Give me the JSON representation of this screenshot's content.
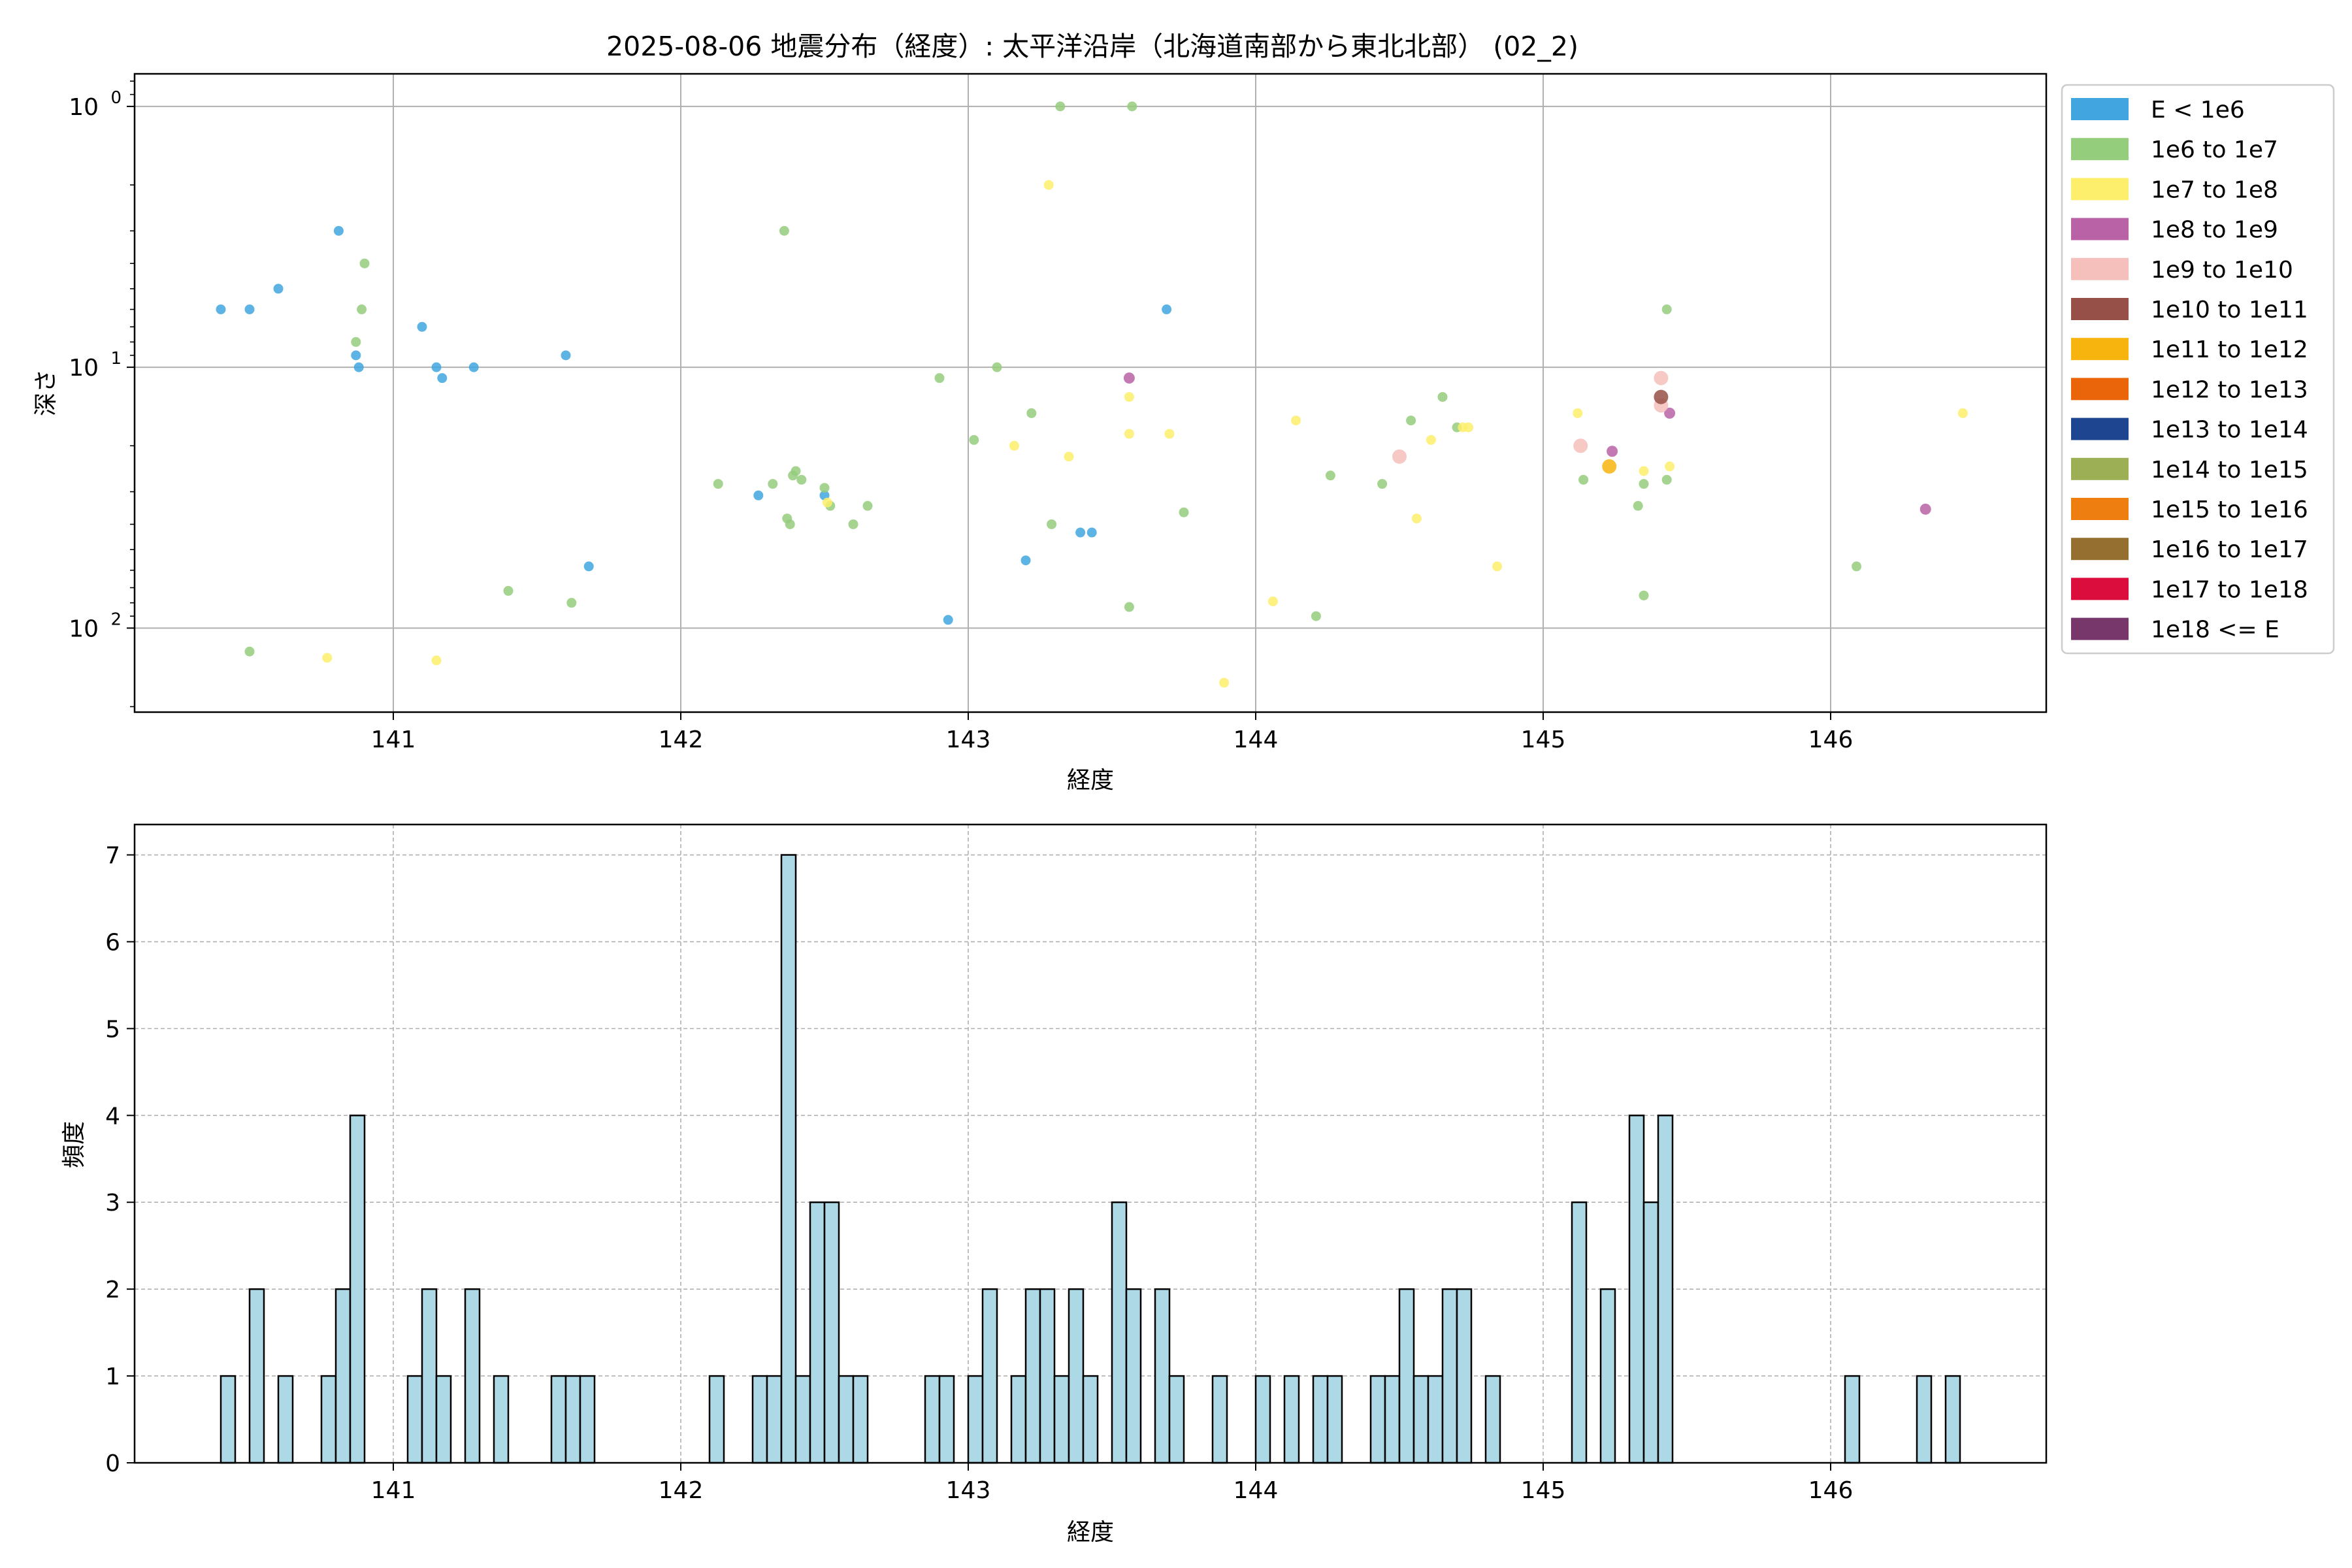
{
  "title": "2025-08-06 地震分布（経度）: 太平洋沿岸（北海道南部から東北北部） (02_2)",
  "chart_data": [
    {
      "type": "scatter",
      "xlabel": "経度",
      "ylabel": "深さ",
      "xlim": [
        140.1,
        146.75
      ],
      "ylim": [
        210,
        0.75
      ],
      "y_scale": "log",
      "y_inverted": true,
      "x_ticks": [
        141,
        142,
        143,
        144,
        145,
        146
      ],
      "y_ticks": [
        {
          "value": 1,
          "base": "10",
          "exp": "0"
        },
        {
          "value": 10,
          "base": "10",
          "exp": "1"
        },
        {
          "value": 100,
          "base": "10",
          "exp": "2"
        }
      ],
      "grid": true,
      "legend_position": "outside-right",
      "legend": [
        {
          "label": "E < 1e6",
          "color": "#41a6df"
        },
        {
          "label": "1e6 to 1e7",
          "color": "#94cd7c"
        },
        {
          "label": "1e7 to 1e8",
          "color": "#fdee6c"
        },
        {
          "label": "1e8 to 1e9",
          "color": "#b963a6"
        },
        {
          "label": "1e9 to 1e10",
          "color": "#f5bfbb"
        },
        {
          "label": "1e10 to 1e11",
          "color": "#975048"
        },
        {
          "label": "1e11 to 1e12",
          "color": "#f8b40e"
        },
        {
          "label": "1e12 to 1e13",
          "color": "#ea6409"
        },
        {
          "label": "1e13 to 1e14",
          "color": "#1e4690"
        },
        {
          "label": "1e14 to 1e15",
          "color": "#9daf55"
        },
        {
          "label": "1e15 to 1e16",
          "color": "#ef7e11"
        },
        {
          "label": "1e16 to 1e17",
          "color": "#946f2f"
        },
        {
          "label": "1e17 to 1e18",
          "color": "#db0d3c"
        },
        {
          "label": "1e18 <= E",
          "color": "#78376b"
        }
      ],
      "points": [
        [
          140.4,
          6,
          0
        ],
        [
          140.5,
          6,
          0
        ],
        [
          140.6,
          5,
          0
        ],
        [
          140.81,
          3,
          0
        ],
        [
          140.87,
          9,
          0
        ],
        [
          140.88,
          10,
          0
        ],
        [
          141.1,
          7,
          0
        ],
        [
          141.15,
          10,
          0
        ],
        [
          141.17,
          11,
          0
        ],
        [
          141.28,
          10,
          0
        ],
        [
          141.6,
          9,
          0
        ],
        [
          141.68,
          58,
          0
        ],
        [
          142.27,
          31,
          0
        ],
        [
          142.5,
          31,
          0
        ],
        [
          143.2,
          55,
          0
        ],
        [
          143.39,
          43,
          0
        ],
        [
          143.43,
          43,
          0
        ],
        [
          143.69,
          6,
          0
        ],
        [
          142.93,
          93,
          0
        ],
        [
          140.87,
          8,
          1
        ],
        [
          140.89,
          6,
          1
        ],
        [
          140.9,
          4,
          1
        ],
        [
          140.5,
          123,
          1
        ],
        [
          141.4,
          72,
          1
        ],
        [
          141.62,
          80,
          1
        ],
        [
          142.13,
          28,
          1
        ],
        [
          142.32,
          28,
          1
        ],
        [
          142.37,
          38,
          1
        ],
        [
          142.38,
          40,
          1
        ],
        [
          142.39,
          26,
          1
        ],
        [
          142.4,
          25,
          1
        ],
        [
          142.42,
          27,
          1
        ],
        [
          142.5,
          29,
          1
        ],
        [
          142.52,
          34,
          1
        ],
        [
          142.6,
          40,
          1
        ],
        [
          142.65,
          34,
          1
        ],
        [
          142.36,
          3,
          1
        ],
        [
          142.9,
          11,
          1
        ],
        [
          143.02,
          19,
          1
        ],
        [
          143.1,
          10,
          1
        ],
        [
          143.22,
          15,
          1
        ],
        [
          143.29,
          40,
          1
        ],
        [
          143.32,
          1,
          1
        ],
        [
          143.57,
          1,
          1
        ],
        [
          143.56,
          83,
          1
        ],
        [
          143.75,
          36,
          1
        ],
        [
          144.21,
          90,
          1
        ],
        [
          144.26,
          26,
          1
        ],
        [
          144.44,
          28,
          1
        ],
        [
          144.54,
          16,
          1
        ],
        [
          144.65,
          13,
          1
        ],
        [
          144.7,
          17,
          1
        ],
        [
          145.14,
          27,
          1
        ],
        [
          145.33,
          34,
          1
        ],
        [
          145.35,
          28,
          1
        ],
        [
          145.35,
          75,
          1
        ],
        [
          145.43,
          6,
          1
        ],
        [
          145.43,
          27,
          1
        ],
        [
          146.09,
          58,
          1
        ],
        [
          140.77,
          130,
          2
        ],
        [
          141.15,
          133,
          2
        ],
        [
          142.51,
          33,
          2
        ],
        [
          143.16,
          20,
          2
        ],
        [
          143.28,
          2,
          2
        ],
        [
          143.35,
          22,
          2
        ],
        [
          143.56,
          13,
          2
        ],
        [
          143.56,
          18,
          2
        ],
        [
          143.7,
          18,
          2
        ],
        [
          143.89,
          162,
          2
        ],
        [
          144.06,
          79,
          2
        ],
        [
          144.14,
          16,
          2
        ],
        [
          144.56,
          38,
          2
        ],
        [
          144.61,
          19,
          2
        ],
        [
          144.72,
          17,
          2
        ],
        [
          144.74,
          17,
          2
        ],
        [
          144.84,
          58,
          2
        ],
        [
          145.12,
          15,
          2
        ],
        [
          145.35,
          25,
          2
        ],
        [
          145.44,
          24,
          2
        ],
        [
          146.46,
          15,
          2
        ],
        [
          143.56,
          11,
          3
        ],
        [
          145.24,
          21,
          3
        ],
        [
          145.44,
          15,
          3
        ],
        [
          146.33,
          35,
          3
        ],
        [
          144.5,
          22,
          4
        ],
        [
          145.13,
          20,
          4
        ],
        [
          145.41,
          11,
          4
        ],
        [
          145.41,
          14,
          4
        ],
        [
          145.41,
          13,
          5
        ],
        [
          145.23,
          24,
          6
        ]
      ]
    },
    {
      "type": "bar",
      "xlabel": "経度",
      "ylabel": "頻度",
      "xlim": [
        140.1,
        146.75
      ],
      "ylim": [
        0,
        7.35
      ],
      "x_ticks": [
        141,
        142,
        143,
        144,
        145,
        146
      ],
      "y_ticks": [
        0,
        1,
        2,
        3,
        4,
        5,
        6,
        7
      ],
      "grid": true,
      "bin_width": 0.05,
      "bar_color": "#add8e6",
      "bins": [
        [
          140.4,
          1
        ],
        [
          140.5,
          2
        ],
        [
          140.6,
          1
        ],
        [
          140.75,
          1
        ],
        [
          140.8,
          2
        ],
        [
          140.85,
          4
        ],
        [
          141.05,
          1
        ],
        [
          141.1,
          2
        ],
        [
          141.15,
          1
        ],
        [
          141.25,
          2
        ],
        [
          141.35,
          1
        ],
        [
          141.55,
          1
        ],
        [
          141.6,
          1
        ],
        [
          141.65,
          1
        ],
        [
          142.1,
          1
        ],
        [
          142.25,
          1
        ],
        [
          142.3,
          1
        ],
        [
          142.35,
          7
        ],
        [
          142.4,
          1
        ],
        [
          142.45,
          3
        ],
        [
          142.5,
          3
        ],
        [
          142.55,
          1
        ],
        [
          142.6,
          1
        ],
        [
          142.85,
          1
        ],
        [
          142.9,
          1
        ],
        [
          143.0,
          1
        ],
        [
          143.05,
          2
        ],
        [
          143.15,
          1
        ],
        [
          143.2,
          2
        ],
        [
          143.25,
          2
        ],
        [
          143.3,
          1
        ],
        [
          143.35,
          2
        ],
        [
          143.4,
          1
        ],
        [
          143.5,
          3
        ],
        [
          143.55,
          2
        ],
        [
          143.65,
          2
        ],
        [
          143.7,
          1
        ],
        [
          143.85,
          1
        ],
        [
          144.0,
          1
        ],
        [
          144.1,
          1
        ],
        [
          144.2,
          1
        ],
        [
          144.25,
          1
        ],
        [
          144.4,
          1
        ],
        [
          144.45,
          1
        ],
        [
          144.5,
          2
        ],
        [
          144.55,
          1
        ],
        [
          144.6,
          1
        ],
        [
          144.65,
          2
        ],
        [
          144.7,
          2
        ],
        [
          144.8,
          1
        ],
        [
          145.1,
          3
        ],
        [
          145.2,
          2
        ],
        [
          145.3,
          4
        ],
        [
          145.35,
          3
        ],
        [
          145.4,
          4
        ],
        [
          146.05,
          1
        ],
        [
          146.3,
          1
        ],
        [
          146.4,
          1
        ]
      ]
    }
  ]
}
